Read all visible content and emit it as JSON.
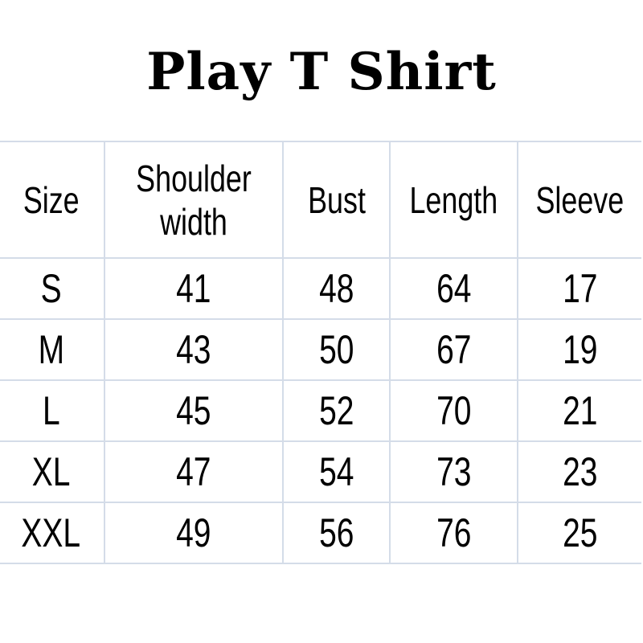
{
  "title": "Play T Shirt",
  "table": {
    "headers": [
      "Size",
      "Shoulder width",
      "Bust",
      "Length",
      "Sleeve"
    ],
    "rows": [
      [
        "S",
        "41",
        "48",
        "64",
        "17"
      ],
      [
        "M",
        "43",
        "50",
        "67",
        "19"
      ],
      [
        "L",
        "45",
        "52",
        "70",
        "21"
      ],
      [
        "XL",
        "47",
        "54",
        "73",
        "23"
      ],
      [
        "XXL",
        "49",
        "56",
        "76",
        "25"
      ]
    ]
  },
  "colors": {
    "border": "#d4dce8",
    "text": "#000000"
  }
}
